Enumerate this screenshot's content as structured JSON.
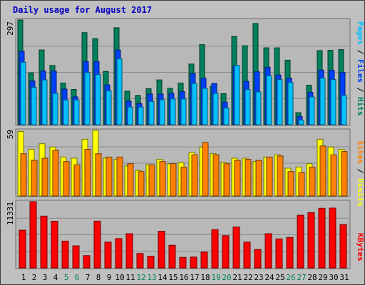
{
  "chart_data": {
    "type": "bar",
    "title": "Daily usage for August 2017",
    "days": [
      "1",
      "2",
      "3",
      "4",
      "5",
      "6",
      "7",
      "8",
      "9",
      "10",
      "11",
      "12",
      "13",
      "14",
      "15",
      "16",
      "17",
      "18",
      "19",
      "20",
      "21",
      "22",
      "23",
      "24",
      "25",
      "26",
      "27",
      "28",
      "29",
      "30",
      "31"
    ],
    "weekend_days": [
      "5",
      "6",
      "12",
      "13",
      "19",
      "20",
      "26",
      "27"
    ],
    "top_panel": {
      "scale_max_label": "297",
      "scale_max": 297,
      "legend": [
        {
          "text": "Pages",
          "color": "#00C0FF"
        },
        {
          "text": " / ",
          "color": "#000000"
        },
        {
          "text": "Files",
          "color": "#0040FF"
        },
        {
          "text": " / ",
          "color": "#000000"
        },
        {
          "text": "Hits",
          "color": "#00805C"
        }
      ],
      "series": [
        {
          "name": "Hits",
          "color": "#00805C",
          "values": [
            297,
            147,
            212,
            168,
            118,
            100,
            261,
            244,
            151,
            275,
            95,
            83,
            102,
            127,
            103,
            118,
            172,
            227,
            109,
            88,
            250,
            224,
            287,
            218,
            218,
            183,
            34,
            112,
            210,
            211,
            213
          ]
        },
        {
          "name": "Files",
          "color": "#0040FF",
          "values": [
            208,
            124,
            152,
            152,
            101,
            79,
            179,
            179,
            113,
            212,
            67,
            60,
            87,
            87,
            89,
            94,
            145,
            132,
            117,
            64,
            167,
            123,
            150,
            163,
            141,
            132,
            23,
            92,
            155,
            154,
            148
          ]
        },
        {
          "name": "Pages",
          "color": "#00C0FF",
          "values": [
            177,
            106,
            127,
            89,
            70,
            70,
            148,
            142,
            96,
            187,
            50,
            50,
            66,
            71,
            73,
            73,
            117,
            103,
            89,
            47,
            168,
            100,
            93,
            139,
            128,
            120,
            13,
            79,
            132,
            128,
            83
          ]
        }
      ]
    },
    "middle_panel": {
      "scale_max_label": "59",
      "scale_max": 59,
      "legend": [
        {
          "text": "Sites",
          "color": "#FF8000"
        },
        {
          "text": " / ",
          "color": "#000000"
        },
        {
          "text": "Visits",
          "color": "#FFFF00"
        }
      ],
      "series": [
        {
          "name": "Visits",
          "color": "#FFFF00",
          "values": [
            58,
            42,
            47,
            44,
            35,
            34,
            51,
            59,
            34,
            33,
            27,
            23,
            28,
            33,
            29,
            30,
            39,
            44,
            38,
            30,
            34,
            34,
            31,
            35,
            37,
            25,
            26,
            29,
            51,
            44,
            42
          ]
        },
        {
          "name": "Sites",
          "color": "#FF8000",
          "values": [
            38,
            32,
            34,
            41,
            31,
            28,
            42,
            38,
            35,
            35,
            29,
            22,
            28,
            31,
            29,
            26,
            37,
            48,
            37,
            29,
            32,
            33,
            32,
            35,
            36,
            22,
            21,
            26,
            45,
            37,
            40
          ]
        }
      ]
    },
    "bottom_panel": {
      "scale_max_label": "11331",
      "scale_max": 11331,
      "legend": [
        {
          "text": "KBytes",
          "color": "#FF0000"
        }
      ],
      "series": [
        {
          "name": "KBytes",
          "color": "#FF0000",
          "values": [
            6450,
            11331,
            8855,
            7980,
            4580,
            3780,
            2100,
            8000,
            4410,
            5010,
            5850,
            2460,
            2010,
            6260,
            3870,
            1800,
            1860,
            2700,
            6540,
            5510,
            7000,
            4410,
            3150,
            5850,
            4960,
            5200,
            9000,
            9450,
            10200,
            10230,
            7400
          ]
        }
      ]
    }
  }
}
